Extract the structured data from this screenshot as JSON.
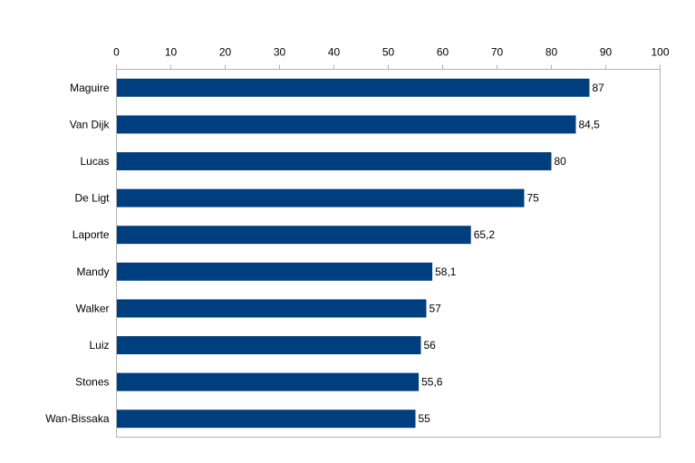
{
  "chart_data": {
    "type": "bar",
    "orientation": "horizontal",
    "categories": [
      "Maguire",
      "Van Dijk",
      "Lucas",
      "De Ligt",
      "Laporte",
      "Mandy",
      "Walker",
      "Luiz",
      "Stones",
      "Wan-Bissaka"
    ],
    "values": [
      87,
      84.5,
      80,
      75,
      65.2,
      58.1,
      57,
      56,
      55.6,
      55
    ],
    "value_labels": [
      "87",
      "84,5",
      "80",
      "75",
      "65,2",
      "58,1",
      "57",
      "56",
      "55,6",
      "55"
    ],
    "xlim": [
      0,
      100
    ],
    "x_ticks": [
      0,
      10,
      20,
      30,
      40,
      50,
      60,
      70,
      80,
      90,
      100
    ],
    "x_axis_position": "top",
    "grid": false,
    "bar_color": "#003f7f",
    "title": "",
    "xlabel": "",
    "ylabel": ""
  }
}
